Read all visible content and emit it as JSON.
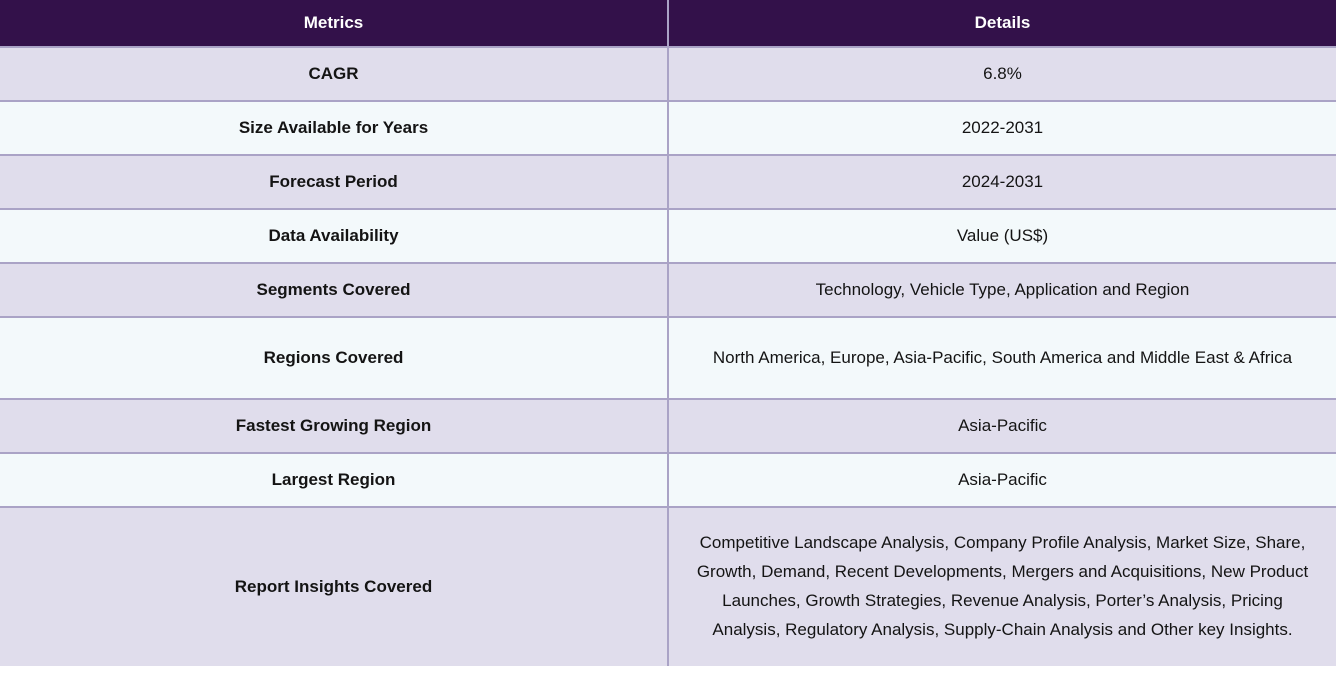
{
  "table": {
    "columns": [
      "Metrics",
      "Details"
    ],
    "rows": [
      {
        "metric": "CAGR",
        "detail": "6.8%"
      },
      {
        "metric": "Size Available for Years",
        "detail": "2022-2031"
      },
      {
        "metric": "Forecast Period",
        "detail": "2024-2031"
      },
      {
        "metric": "Data Availability",
        "detail": "Value (US$)"
      },
      {
        "metric": "Segments Covered",
        "detail": "Technology, Vehicle Type, Application and Region"
      },
      {
        "metric": "Regions Covered",
        "detail": "North America, Europe, Asia-Pacific, South America and Middle East & Africa"
      },
      {
        "metric": "Fastest Growing Region",
        "detail": "Asia-Pacific"
      },
      {
        "metric": "Largest Region",
        "detail": "Asia-Pacific"
      },
      {
        "metric": "Report Insights Covered",
        "detail": "Competitive Landscape Analysis, Company Profile Analysis, Market Size, Share, Growth, Demand, Recent Developments, Mergers and Acquisitions, New Product Launches, Growth Strategies, Revenue Analysis, Porter’s Analysis, Pricing Analysis, Regulatory Analysis, Supply-Chain Analysis and Other key Insights."
      }
    ],
    "colors": {
      "header_bg": "#33114a",
      "header_text": "#ffffff",
      "row_lavender": "#e0ddec",
      "row_light": "#f3f9fb",
      "border": "#aaa3c6",
      "body_text": "#141414"
    }
  }
}
